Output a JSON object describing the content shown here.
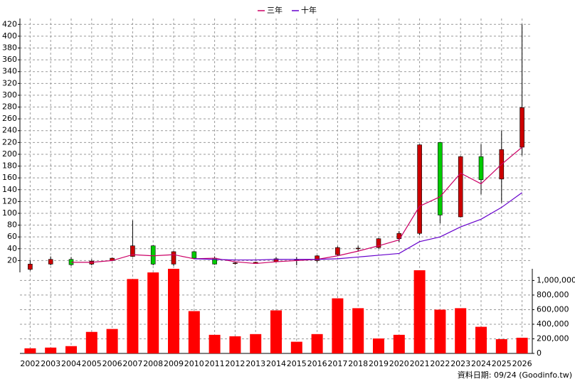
{
  "chart_data": {
    "type": "candlestick",
    "categories": [
      "2002",
      "2003",
      "2004",
      "2005",
      "2006",
      "2007",
      "2008",
      "2009",
      "2010",
      "2011",
      "2012",
      "2013",
      "2014",
      "2015",
      "2016",
      "2017",
      "2018",
      "2019",
      "2020",
      "2021",
      "2022",
      "2023",
      "2024",
      "2025",
      "2026"
    ],
    "price": {
      "ylim": [
        0,
        430
      ],
      "yticks": [
        20,
        40,
        60,
        80,
        100,
        120,
        140,
        160,
        180,
        200,
        220,
        240,
        260,
        280,
        300,
        320,
        340,
        360,
        380,
        400,
        420
      ],
      "open": [
        5,
        14,
        22,
        14,
        20,
        27,
        45,
        14,
        35,
        24,
        15,
        15,
        18,
        21,
        20,
        30,
        40,
        42,
        57,
        66,
        220,
        94,
        196,
        158,
        212
      ],
      "high": [
        21,
        27,
        26,
        22,
        25,
        88,
        46,
        36,
        36,
        27,
        17,
        18,
        26,
        26,
        29,
        44,
        45,
        58,
        70,
        217,
        221,
        197,
        217,
        240,
        420
      ],
      "low": [
        3,
        12,
        11,
        12,
        19,
        26,
        12,
        11,
        23,
        13,
        13,
        15,
        17,
        12,
        17,
        28,
        35,
        40,
        51,
        63,
        83,
        93,
        132,
        118,
        198
      ],
      "close": [
        14,
        22,
        13,
        19,
        24,
        45,
        14,
        35,
        24,
        14,
        16,
        17,
        23,
        22,
        28,
        42,
        41,
        57,
        66,
        216,
        97,
        196,
        157,
        208,
        279
      ],
      "up_color": "#cc0000",
      "down_color": "#00cc00"
    },
    "series": [
      {
        "name": "三年",
        "color": "#cc0066",
        "values": [
          null,
          null,
          17,
          17,
          20,
          30,
          28,
          30,
          23,
          24,
          18,
          15,
          18,
          20,
          22,
          28,
          36,
          45,
          55,
          112,
          128,
          168,
          150,
          183,
          212
        ]
      },
      {
        "name": "十年",
        "color": "#6600cc",
        "values": [
          null,
          null,
          null,
          null,
          null,
          null,
          null,
          null,
          23,
          22,
          21,
          21,
          22,
          22,
          22,
          23,
          26,
          29,
          32,
          52,
          60,
          77,
          90,
          110,
          135
        ]
      }
    ],
    "volume": {
      "color": "#ff0000",
      "ylim": [
        0,
        1160000
      ],
      "yticks": [
        0,
        {
          "value": 200000,
          "label": "200,000"
        },
        {
          "value": 400000,
          "label": "400,000"
        },
        {
          "value": 600000,
          "label": "600,000"
        },
        {
          "value": 800000,
          "label": "800,000"
        },
        {
          "value": 1000000,
          "label": "1,000,000"
        }
      ],
      "values": [
        70000,
        80000,
        100000,
        295000,
        335000,
        1020000,
        1110000,
        1160000,
        580000,
        255000,
        235000,
        265000,
        590000,
        160000,
        265000,
        755000,
        620000,
        205000,
        255000,
        1140000,
        600000,
        620000,
        365000,
        195000,
        215000
      ]
    },
    "grid": true,
    "source": "資料日期: 09/24 (Goodinfo.tw)"
  }
}
